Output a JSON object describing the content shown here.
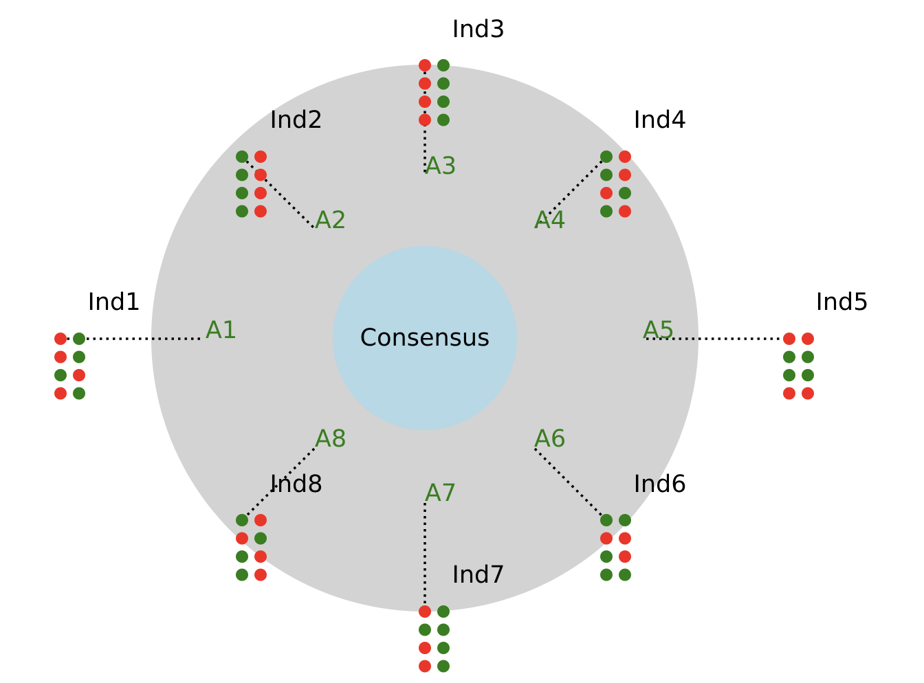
{
  "colors": {
    "outer_ring": "#d3d3d3",
    "consensus_fill": "#b7d8e4",
    "area_label": "#3a7d22",
    "dot_red": "#e8372a",
    "dot_green": "#3a7d22"
  },
  "center": {
    "label": "Consensus"
  },
  "individuals": [
    {
      "label": "Ind1",
      "area_label": "A1",
      "rows": [
        [
          "red",
          "green"
        ],
        [
          "red",
          "green"
        ],
        [
          "green",
          "red"
        ],
        [
          "red",
          "green"
        ]
      ]
    },
    {
      "label": "Ind2",
      "area_label": "A2",
      "rows": [
        [
          "green",
          "red"
        ],
        [
          "green",
          "red"
        ],
        [
          "green",
          "red"
        ],
        [
          "green",
          "red"
        ]
      ]
    },
    {
      "label": "Ind3",
      "area_label": "A3",
      "rows": [
        [
          "red",
          "green"
        ],
        [
          "red",
          "green"
        ],
        [
          "red",
          "green"
        ],
        [
          "red",
          "green"
        ]
      ]
    },
    {
      "label": "Ind4",
      "area_label": "A4",
      "rows": [
        [
          "green",
          "red"
        ],
        [
          "green",
          "red"
        ],
        [
          "red",
          "green"
        ],
        [
          "green",
          "red"
        ]
      ]
    },
    {
      "label": "Ind5",
      "area_label": "A5",
      "rows": [
        [
          "red",
          "red"
        ],
        [
          "green",
          "green"
        ],
        [
          "green",
          "green"
        ],
        [
          "red",
          "red"
        ]
      ]
    },
    {
      "label": "Ind6",
      "area_label": "A6",
      "rows": [
        [
          "green",
          "green"
        ],
        [
          "red",
          "red"
        ],
        [
          "green",
          "red"
        ],
        [
          "green",
          "green"
        ]
      ]
    },
    {
      "label": "Ind7",
      "area_label": "A7",
      "rows": [
        [
          "red",
          "green"
        ],
        [
          "green",
          "green"
        ],
        [
          "red",
          "green"
        ],
        [
          "red",
          "green"
        ]
      ]
    },
    {
      "label": "Ind8",
      "area_label": "A8",
      "rows": [
        [
          "green",
          "red"
        ],
        [
          "red",
          "green"
        ],
        [
          "green",
          "red"
        ],
        [
          "green",
          "red"
        ]
      ]
    }
  ]
}
